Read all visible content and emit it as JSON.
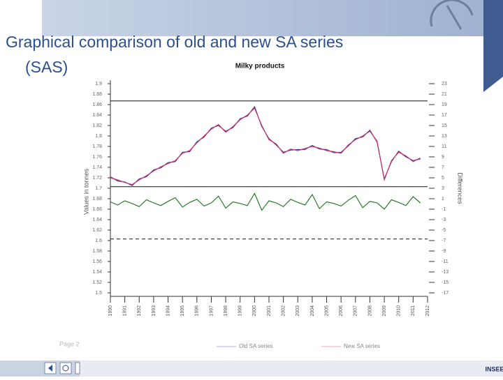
{
  "slide": {
    "title_line1": "Graphical comparison of old and new SA series",
    "title_line2": "(SAS)"
  },
  "footer": {
    "page": "Page 2",
    "logo": "INSEE"
  },
  "chart_data": {
    "type": "line",
    "title": "Milky products",
    "ylabel": "Values in tonnes",
    "y2label": "Differences",
    "x": [
      1990,
      1990.5,
      1991,
      1991.5,
      1992,
      1992.5,
      1993,
      1993.5,
      1994,
      1994.5,
      1995,
      1995.5,
      1996,
      1996.5,
      1997,
      1997.5,
      1998,
      1998.5,
      1999,
      1999.5,
      2000,
      2000.5,
      2001,
      2001.5,
      2002,
      2002.5,
      2003,
      2003.5,
      2004,
      2004.5,
      2005,
      2005.5,
      2006,
      2006.5,
      2007,
      2007.5,
      2008,
      2008.5,
      2009,
      2009.5,
      2010,
      2010.5,
      2011,
      2011.5
    ],
    "series": [
      {
        "name": "Old SA series",
        "color": "#3c3c9c",
        "axis": "y",
        "values": [
          1.722,
          1.714,
          1.712,
          1.705,
          1.718,
          1.722,
          1.735,
          1.739,
          1.749,
          1.751,
          1.769,
          1.77,
          1.789,
          1.798,
          1.815,
          1.82,
          1.809,
          1.816,
          1.833,
          1.838,
          1.856,
          1.818,
          1.795,
          1.783,
          1.769,
          1.773,
          1.774,
          1.774,
          1.782,
          1.775,
          1.774,
          1.768,
          1.769,
          1.781,
          1.795,
          1.798,
          1.811,
          1.788,
          1.718,
          1.751,
          1.771,
          1.76,
          1.753,
          1.756
        ]
      },
      {
        "name": "New SA series",
        "color": "#c8306c",
        "axis": "y",
        "values": [
          1.72,
          1.716,
          1.711,
          1.707,
          1.716,
          1.724,
          1.733,
          1.741,
          1.747,
          1.753,
          1.767,
          1.772,
          1.787,
          1.8,
          1.813,
          1.822,
          1.807,
          1.818,
          1.831,
          1.84,
          1.853,
          1.82,
          1.793,
          1.785,
          1.767,
          1.775,
          1.772,
          1.776,
          1.78,
          1.777,
          1.772,
          1.77,
          1.767,
          1.783,
          1.793,
          1.8,
          1.809,
          1.79,
          1.716,
          1.753,
          1.769,
          1.762,
          1.751,
          1.758
        ]
      },
      {
        "name": "Differences",
        "color": "#2a7a2a",
        "axis": "y2",
        "values": [
          0.4,
          -0.2,
          0.6,
          0.1,
          -0.5,
          0.8,
          0.2,
          -0.3,
          0.5,
          1.2,
          -0.6,
          0.3,
          0.9,
          -0.4,
          0.2,
          1.5,
          -0.8,
          0.4,
          0.1,
          -0.3,
          2.0,
          -1.2,
          0.6,
          0.2,
          -0.5,
          0.9,
          0.3,
          -0.2,
          1.8,
          -0.9,
          0.4,
          0.1,
          -0.4,
          0.7,
          1.6,
          -0.7,
          0.5,
          0.2,
          -1.0,
          0.8,
          0.3,
          -0.3,
          1.4,
          0.2
        ]
      }
    ],
    "xlim": [
      1990,
      2012
    ],
    "xticks": [
      1990,
      1991,
      1992,
      1993,
      1994,
      1995,
      1996,
      1997,
      1998,
      1999,
      2000,
      2001,
      2002,
      2003,
      2004,
      2005,
      2006,
      2007,
      2008,
      2009,
      2010,
      2011,
      2012
    ],
    "ylim": [
      1.5,
      1.9
    ],
    "yticks": [
      1.9,
      1.88,
      1.86,
      1.84,
      1.82,
      1.8,
      1.78,
      1.76,
      1.74,
      1.72,
      1.7,
      1.68,
      1.66,
      1.64,
      1.62,
      1.6,
      1.58,
      1.56,
      1.54,
      1.52,
      1.5
    ],
    "y2lim": [
      -17,
      23
    ],
    "y2ticks": [
      23,
      21,
      19,
      17,
      15,
      13,
      11,
      9,
      7,
      5,
      3,
      1,
      -1,
      -3,
      -5,
      -7,
      -9,
      -11,
      -13,
      -15,
      -17
    ],
    "reference_lines": [
      {
        "axis": "y",
        "value": 1.867
      },
      {
        "axis": "y",
        "value": 1.703
      },
      {
        "axis": "y2",
        "value": -6.7,
        "dashed": true
      }
    ],
    "legend": "bottom"
  }
}
